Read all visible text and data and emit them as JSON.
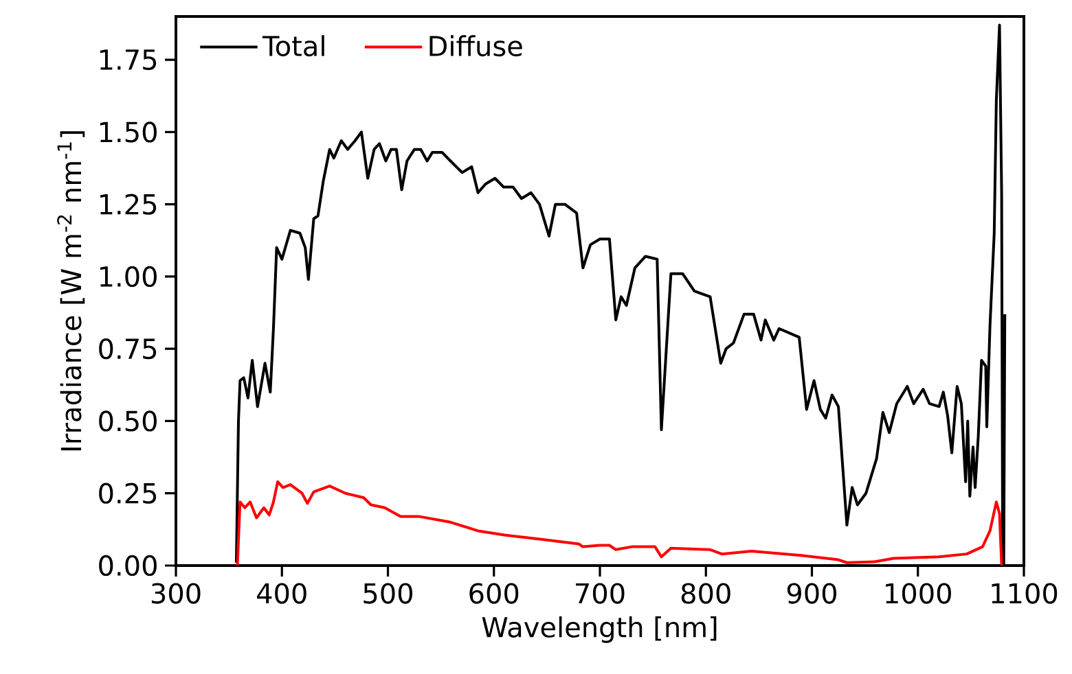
{
  "chart_data": {
    "type": "line",
    "xlabel": "Wavelength [nm]",
    "ylabel": "Irradiance [W m$^{-2}$ nm$^{-1}$]",
    "xlim": [
      300,
      1100
    ],
    "ylim": [
      0,
      1.9
    ],
    "xticks": [
      300,
      400,
      500,
      600,
      700,
      800,
      900,
      1000,
      1100
    ],
    "yticks": [
      {
        "value": 0,
        "label": "0.00"
      },
      {
        "value": 0.25,
        "label": "0.25"
      },
      {
        "value": 0.5,
        "label": "0.50"
      },
      {
        "value": 0.75,
        "label": "0.75"
      },
      {
        "value": 1,
        "label": "1.00"
      },
      {
        "value": 1.25,
        "label": "1.25"
      },
      {
        "value": 1.5,
        "label": "1.50"
      },
      {
        "value": 1.75,
        "label": "1.75"
      }
    ],
    "legend": "top left",
    "grid": false,
    "series": [
      {
        "name": "Total",
        "color": "#000000",
        "x": [
          357,
          359,
          360.5,
          364,
          368,
          372,
          377,
          384,
          389,
          392,
          395,
          400,
          408,
          417,
          422,
          425,
          430,
          434,
          439,
          445,
          449,
          456,
          462,
          469,
          475,
          481,
          487,
          492,
          498,
          503,
          508,
          513,
          518,
          525,
          531,
          537,
          542,
          551,
          559,
          570,
          579,
          585,
          592,
          601,
          609,
          618,
          626,
          635,
          643,
          652,
          658,
          667,
          678,
          684,
          691,
          700,
          709,
          715,
          720,
          725,
          733,
          743,
          754,
          758,
          767,
          778,
          789,
          804,
          814,
          819,
          826,
          836,
          845,
          852,
          856,
          864,
          869,
          888,
          895,
          902,
          908,
          913,
          919,
          925,
          933,
          938,
          943,
          951,
          961,
          967,
          973,
          980,
          990,
          996,
          1005,
          1011,
          1020,
          1024,
          1028,
          1032,
          1037,
          1041,
          1045,
          1047,
          1049,
          1052,
          1054,
          1057,
          1060,
          1064,
          1065,
          1068,
          1072,
          1074,
          1077,
          1079,
          1080,
          1081,
          1082
        ],
        "values": [
          0.01,
          0.5,
          0.64,
          0.65,
          0.58,
          0.71,
          0.55,
          0.7,
          0.6,
          0.82,
          1.1,
          1.06,
          1.16,
          1.15,
          1.1,
          0.99,
          1.2,
          1.21,
          1.33,
          1.44,
          1.41,
          1.47,
          1.44,
          1.47,
          1.5,
          1.34,
          1.44,
          1.46,
          1.4,
          1.44,
          1.44,
          1.3,
          1.4,
          1.44,
          1.44,
          1.4,
          1.43,
          1.43,
          1.4,
          1.36,
          1.38,
          1.29,
          1.32,
          1.34,
          1.31,
          1.31,
          1.27,
          1.29,
          1.25,
          1.14,
          1.25,
          1.25,
          1.22,
          1.03,
          1.11,
          1.13,
          1.13,
          0.85,
          0.93,
          0.9,
          1.03,
          1.07,
          1.06,
          0.47,
          1.01,
          1.01,
          0.95,
          0.93,
          0.7,
          0.75,
          0.77,
          0.87,
          0.87,
          0.78,
          0.85,
          0.78,
          0.82,
          0.79,
          0.54,
          0.64,
          0.54,
          0.51,
          0.59,
          0.55,
          0.14,
          0.27,
          0.21,
          0.25,
          0.37,
          0.53,
          0.46,
          0.56,
          0.62,
          0.56,
          0.61,
          0.56,
          0.55,
          0.6,
          0.52,
          0.39,
          0.62,
          0.56,
          0.29,
          0.5,
          0.24,
          0.41,
          0.27,
          0.45,
          0.71,
          0.69,
          0.48,
          0.83,
          1.15,
          1.61,
          1.87,
          1.29,
          0.01,
          0,
          0.87
        ]
      },
      {
        "name": "Diffuse",
        "color": "#ff0000",
        "x": [
          358,
          360.5,
          365,
          370,
          376,
          383,
          388,
          392,
          396,
          401,
          408,
          419,
          424,
          430,
          445,
          460,
          477,
          484,
          497,
          512,
          529,
          559,
          585,
          611,
          646,
          680,
          684,
          700,
          709,
          715,
          730,
          752,
          758,
          767,
          804,
          815,
          843,
          890,
          925,
          933,
          959,
          977,
          1020,
          1046,
          1061,
          1068,
          1074,
          1077,
          1079
        ],
        "values": [
          0,
          0.22,
          0.2,
          0.22,
          0.165,
          0.2,
          0.175,
          0.22,
          0.29,
          0.27,
          0.28,
          0.25,
          0.215,
          0.255,
          0.275,
          0.25,
          0.235,
          0.21,
          0.2,
          0.17,
          0.17,
          0.15,
          0.12,
          0.105,
          0.09,
          0.075,
          0.065,
          0.07,
          0.07,
          0.055,
          0.065,
          0.065,
          0.03,
          0.06,
          0.055,
          0.04,
          0.05,
          0.035,
          0.02,
          0.01,
          0.013,
          0.025,
          0.03,
          0.04,
          0.065,
          0.12,
          0.22,
          0.18,
          0
        ]
      }
    ]
  }
}
